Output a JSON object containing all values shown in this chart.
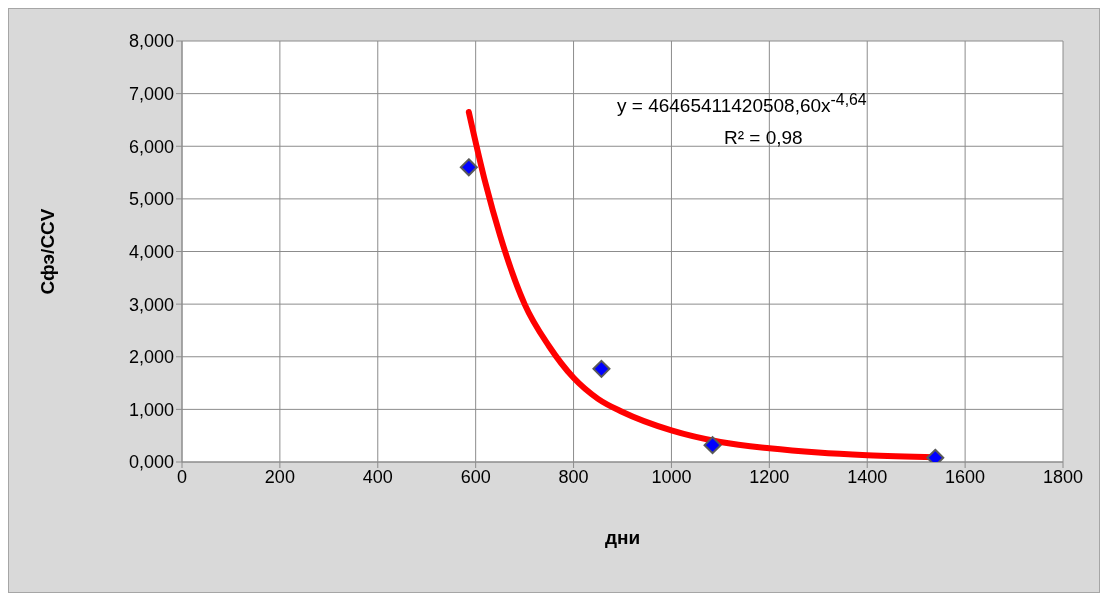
{
  "chart_data": {
    "type": "scatter",
    "xlabel": "дни",
    "ylabel": "Сфэ/CCV",
    "xlim": [
      0,
      1800
    ],
    "xticks": [
      0,
      200,
      400,
      600,
      800,
      1000,
      1200,
      1400,
      1600,
      1800
    ],
    "ylim": [
      0,
      8
    ],
    "yticks": [
      {
        "value": 0,
        "label": "0,000"
      },
      {
        "value": 1,
        "label": "1,000"
      },
      {
        "value": 2,
        "label": "2,000"
      },
      {
        "value": 3,
        "label": "3,000"
      },
      {
        "value": 4,
        "label": "4,000"
      },
      {
        "value": 5,
        "label": "5,000"
      },
      {
        "value": 6,
        "label": "6,000"
      },
      {
        "value": 7,
        "label": "7,000"
      },
      {
        "value": 8,
        "label": "8,000"
      }
    ],
    "grid": true,
    "series": [
      {
        "color": "#0000ff",
        "marker": "diamond",
        "x": [
          586,
          857,
          1084,
          1539
        ],
        "values": [
          5.6,
          1.77,
          0.32,
          0.08
        ]
      },
      {
        "type": "line",
        "color": "#ff0000",
        "marker": "none",
        "line_style": "solid",
        "x": [
          586,
          620,
          650,
          700,
          750,
          800,
          850,
          900,
          1000,
          1100,
          1200,
          1300,
          1400,
          1540
        ],
        "values": [
          6.65,
          5.3,
          4.3,
          3.0,
          2.2,
          1.6,
          1.2,
          0.95,
          0.6,
          0.38,
          0.26,
          0.18,
          0.13,
          0.09
        ]
      }
    ],
    "annotations": [
      "y = 46465411420508,60x$^{-4,64}$",
      "R² = 0,98"
    ]
  }
}
